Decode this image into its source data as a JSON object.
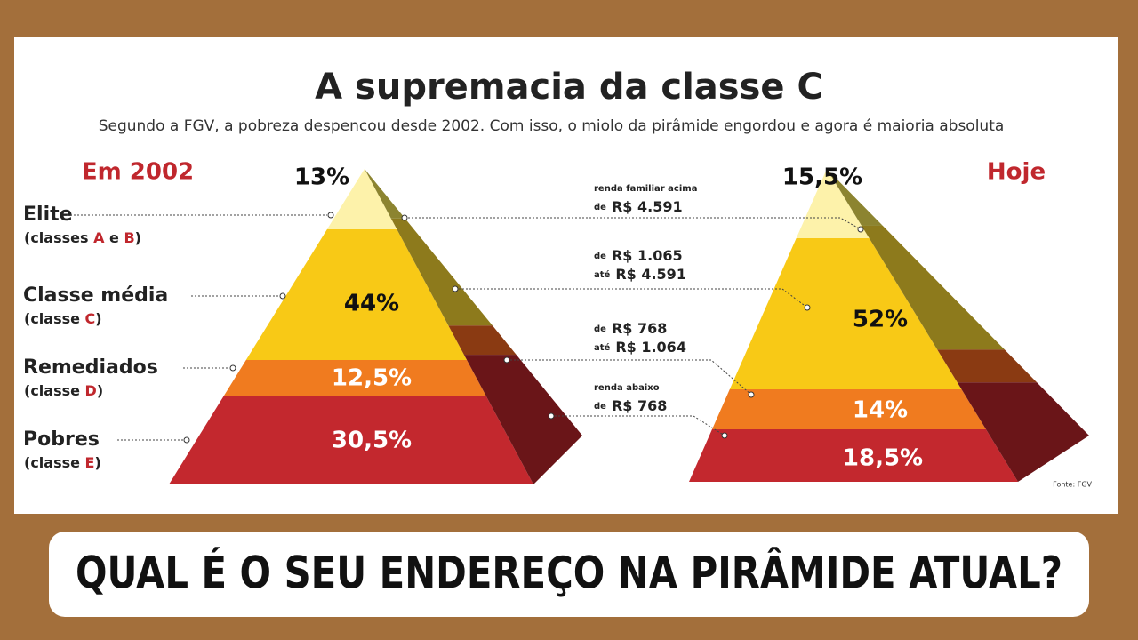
{
  "title": "A supremacia da classe C",
  "subtitle": "Segundo a FGV, a pobreza despencou desde 2002. Com isso, o miolo da pirâmide engordou e agora é maioria absoluta",
  "left": {
    "heading": "Em 2002",
    "layers": [
      "13%",
      "44%",
      "12,5%",
      "30,5%"
    ]
  },
  "right": {
    "heading": "Hoje",
    "layers": [
      "15,5%",
      "52%",
      "14%",
      "18,5%"
    ]
  },
  "classes": [
    {
      "name": "Elite",
      "note": [
        "(classes ",
        "A",
        " e ",
        "B",
        ")"
      ]
    },
    {
      "name": "Classe média",
      "note": [
        "(classe ",
        "C",
        ")"
      ]
    },
    {
      "name": "Remediados",
      "note": [
        "(classe ",
        "D",
        ")"
      ]
    },
    {
      "name": "Pobres",
      "note": [
        "(classe ",
        "E",
        ")"
      ]
    }
  ],
  "income": [
    [
      [
        "renda familiar acima",
        ""
      ],
      [
        "de",
        "R$ 4.591"
      ]
    ],
    [
      [
        "de",
        "R$ 1.065"
      ],
      [
        "até",
        "R$ 4.591"
      ]
    ],
    [
      [
        "de",
        "R$ 768"
      ],
      [
        "até",
        "R$ 1.064"
      ]
    ],
    [
      [
        "renda abaixo",
        ""
      ],
      [
        "de",
        "R$ 768"
      ]
    ]
  ],
  "source": "Fonte: FGV",
  "banner": "QUAL É O SEU ENDEREÇO NA PIRÂMIDE ATUAL?"
}
